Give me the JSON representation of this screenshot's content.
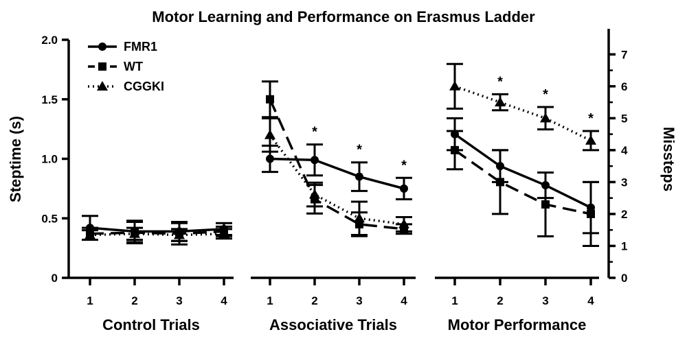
{
  "chart_data": {
    "type": "line",
    "title": "Motor Learning and Performance on Erasmus Ladder",
    "ylabel_left": "Steptime (s)",
    "ylabel_right": "Missteps",
    "left_axis": {
      "ylim": [
        0,
        2.0
      ],
      "ticks": [
        "0",
        "0.5",
        "1.0",
        "1.5",
        "2.0"
      ]
    },
    "right_axis": {
      "ylim": [
        0,
        7.5
      ],
      "ticks": [
        "0",
        "1",
        "2",
        "3",
        "4",
        "5",
        "6",
        "7"
      ]
    },
    "grid": false,
    "legend": {
      "placement": "top-left",
      "entries": [
        {
          "name": "FMR1",
          "marker": "circle",
          "dash": "solid"
        },
        {
          "name": "WT",
          "marker": "square",
          "dash": "dashed"
        },
        {
          "name": "CGGKI",
          "marker": "triangle",
          "dash": "dotted"
        }
      ]
    },
    "panels": [
      {
        "label": "Control Trials",
        "axis": "left",
        "categories": [
          "1",
          "2",
          "3",
          "4"
        ],
        "series": [
          {
            "name": "FMR1",
            "values": [
              0.42,
              0.39,
              0.39,
              0.41
            ],
            "errors": [
              0.1,
              0.09,
              0.08,
              0.05
            ]
          },
          {
            "name": "WT",
            "values": [
              0.37,
              0.38,
              0.37,
              0.39
            ],
            "errors": [
              0.05,
              0.09,
              0.09,
              0.04
            ]
          },
          {
            "name": "CGGKI",
            "values": [
              0.36,
              0.37,
              0.36,
              0.37
            ],
            "errors": [
              0.04,
              0.05,
              0.05,
              0.04
            ]
          }
        ],
        "significant": []
      },
      {
        "label": "Associative Trials",
        "axis": "left",
        "categories": [
          "1",
          "2",
          "3",
          "4"
        ],
        "series": [
          {
            "name": "FMR1",
            "values": [
              1.0,
              0.99,
              0.85,
              0.75
            ],
            "errors": [
              0.11,
              0.13,
              0.12,
              0.09
            ]
          },
          {
            "name": "WT",
            "values": [
              1.5,
              0.66,
              0.45,
              0.41
            ],
            "errors": [
              0.15,
              0.12,
              0.1,
              0.04
            ]
          },
          {
            "name": "CGGKI",
            "values": [
              1.2,
              0.7,
              0.5,
              0.45
            ],
            "errors": [
              0.14,
              0.1,
              0.14,
              0.06
            ]
          }
        ],
        "significant": [
          "2",
          "3",
          "4"
        ]
      },
      {
        "label": "Motor Performance",
        "axis": "right",
        "categories": [
          "1",
          "2",
          "3",
          "4"
        ],
        "series": [
          {
            "name": "FMR1",
            "values": [
              4.5,
              3.5,
              2.9,
              2.2
            ],
            "errors": [
              0.5,
              0.5,
              0.4,
              0.8
            ]
          },
          {
            "name": "WT",
            "values": [
              4.0,
              3.0,
              2.3,
              2.0
            ],
            "errors": [
              0.6,
              1.0,
              1.0,
              1.0
            ]
          },
          {
            "name": "CGGKI",
            "values": [
              6.0,
              5.5,
              5.0,
              4.3
            ],
            "errors": [
              0.7,
              0.25,
              0.35,
              0.3
            ]
          }
        ],
        "significant": [
          "2",
          "3",
          "4"
        ]
      }
    ],
    "significance_marker": "*"
  }
}
